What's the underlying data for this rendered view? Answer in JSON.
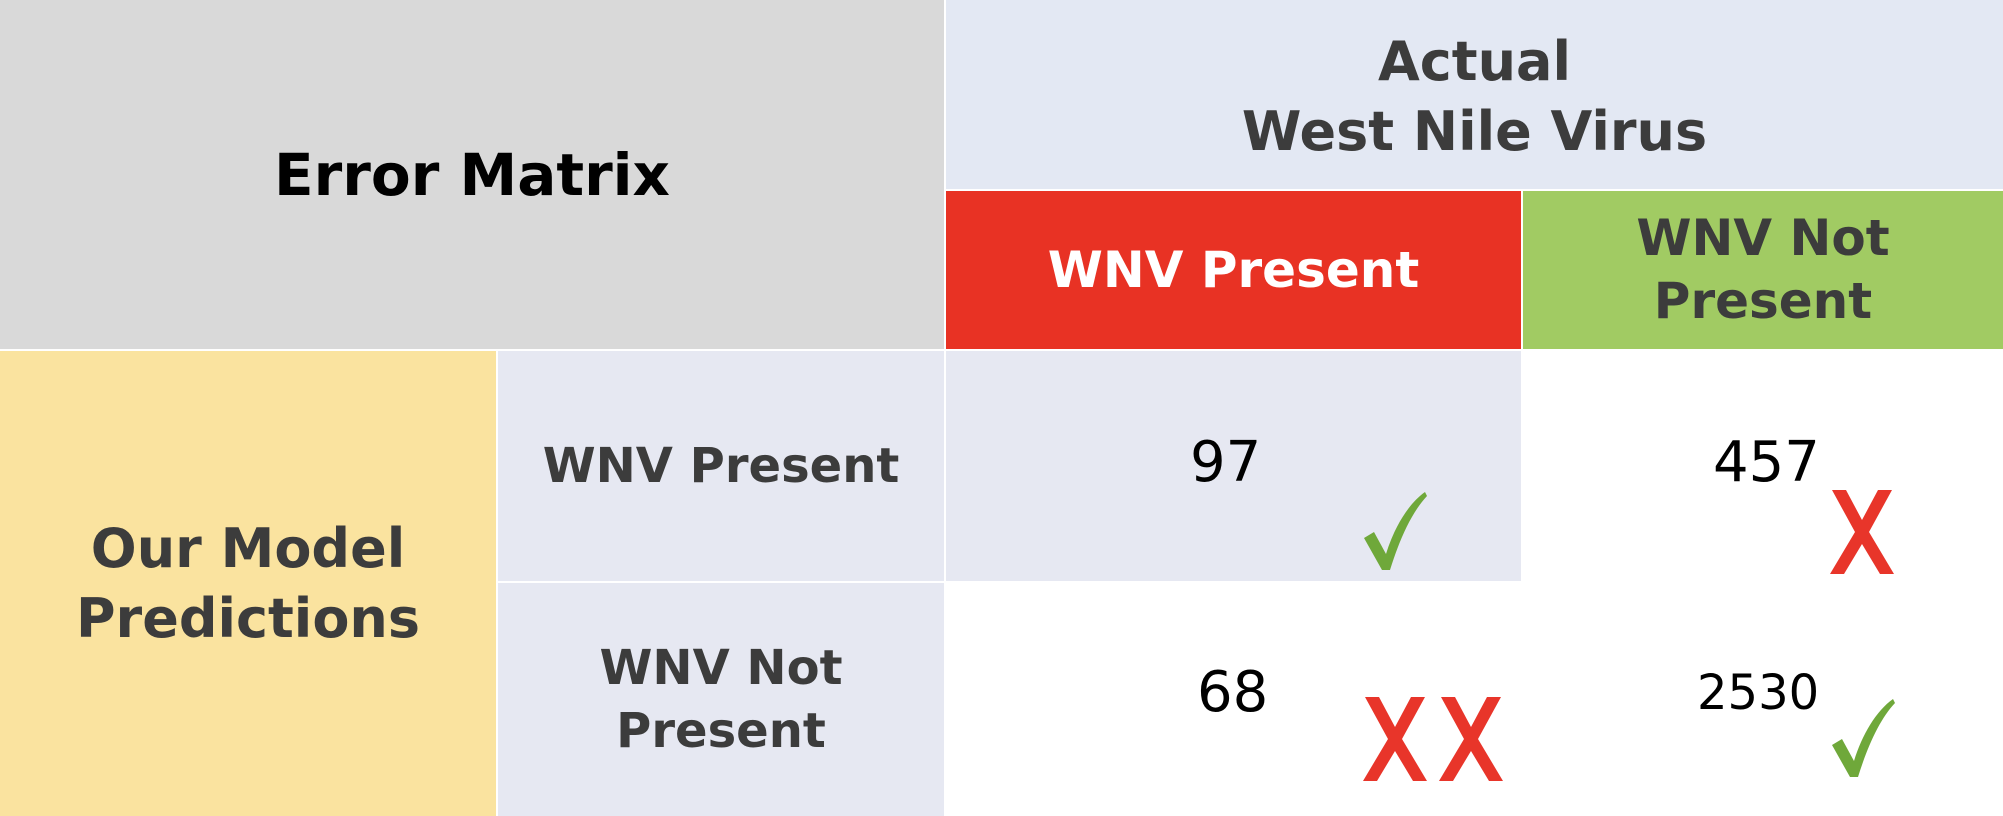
{
  "matrix": {
    "title": "Error Matrix",
    "actual_header": {
      "line1": "Actual",
      "line2": "West Nile Virus"
    },
    "columns": {
      "present": "WNV Present",
      "not_present_line1": "WNV Not",
      "not_present_line2": "Present"
    },
    "row_group": {
      "line1": "Our Model",
      "line2": "Predictions"
    },
    "rows": {
      "present": "WNV Present",
      "not_present_line1": "WNV Not",
      "not_present_line2": "Present"
    },
    "values": {
      "present_present": "97",
      "present_notpresent": "457",
      "notpresent_present": "68",
      "notpresent_notpresent": "2530"
    }
  },
  "icons": {
    "correct": "check-icon",
    "incorrect": "cross-icon"
  },
  "colors": {
    "present_header": "#e83224",
    "not_present_header": "#a1cb63",
    "prediction_group": "#fae39f",
    "title_bg": "#d9d9d9",
    "actual_bg": "#e3e8f3",
    "check": "#6fa83a",
    "cross": "#e8352a"
  }
}
